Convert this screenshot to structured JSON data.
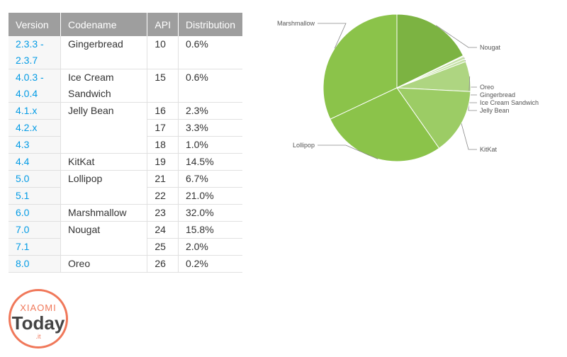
{
  "table": {
    "headers": [
      "Version",
      "Codename",
      "API",
      "Distribution"
    ],
    "rows": [
      {
        "version": "2.3.3 - 2.3.7",
        "codename": "Gingerbread",
        "api": "10",
        "dist": "0.6%"
      },
      {
        "version": "4.0.3 - 4.0.4",
        "codename": "Ice Cream Sandwich",
        "api": "15",
        "dist": "0.6%"
      },
      {
        "version": "4.1.x",
        "codename": "Jelly Bean",
        "api": "16",
        "dist": "2.3%"
      },
      {
        "version": "4.2.x",
        "codename": "",
        "api": "17",
        "dist": "3.3%"
      },
      {
        "version": "4.3",
        "codename": "",
        "api": "18",
        "dist": "1.0%"
      },
      {
        "version": "4.4",
        "codename": "KitKat",
        "api": "19",
        "dist": "14.5%"
      },
      {
        "version": "5.0",
        "codename": "Lollipop",
        "api": "21",
        "dist": "6.7%"
      },
      {
        "version": "5.1",
        "codename": "",
        "api": "22",
        "dist": "21.0%"
      },
      {
        "version": "6.0",
        "codename": "Marshmallow",
        "api": "23",
        "dist": "32.0%"
      },
      {
        "version": "7.0",
        "codename": "Nougat",
        "api": "24",
        "dist": "15.8%"
      },
      {
        "version": "7.1",
        "codename": "",
        "api": "25",
        "dist": "2.0%"
      },
      {
        "version": "8.0",
        "codename": "Oreo",
        "api": "26",
        "dist": "0.2%"
      }
    ]
  },
  "chart_data": {
    "type": "pie",
    "title": "",
    "slices": [
      {
        "label": "Marshmallow",
        "value": 32.0,
        "color": "#8bc34a"
      },
      {
        "label": "Nougat",
        "value": 17.8,
        "color": "#7cb342"
      },
      {
        "label": "Oreo",
        "value": 0.2,
        "color": "#c5e1a5"
      },
      {
        "label": "Gingerbread",
        "value": 0.6,
        "color": "#c5e1a5"
      },
      {
        "label": "Ice Cream Sandwich",
        "value": 0.6,
        "color": "#c5e1a5"
      },
      {
        "label": "Jelly Bean",
        "value": 6.6,
        "color": "#aed581"
      },
      {
        "label": "KitKat",
        "value": 14.5,
        "color": "#9ccc65"
      },
      {
        "label": "Lollipop",
        "value": 27.7,
        "color": "#8bc34a"
      }
    ]
  },
  "watermark": {
    "brand": "XIAOMI",
    "word": "Today",
    "suffix": ".it"
  }
}
